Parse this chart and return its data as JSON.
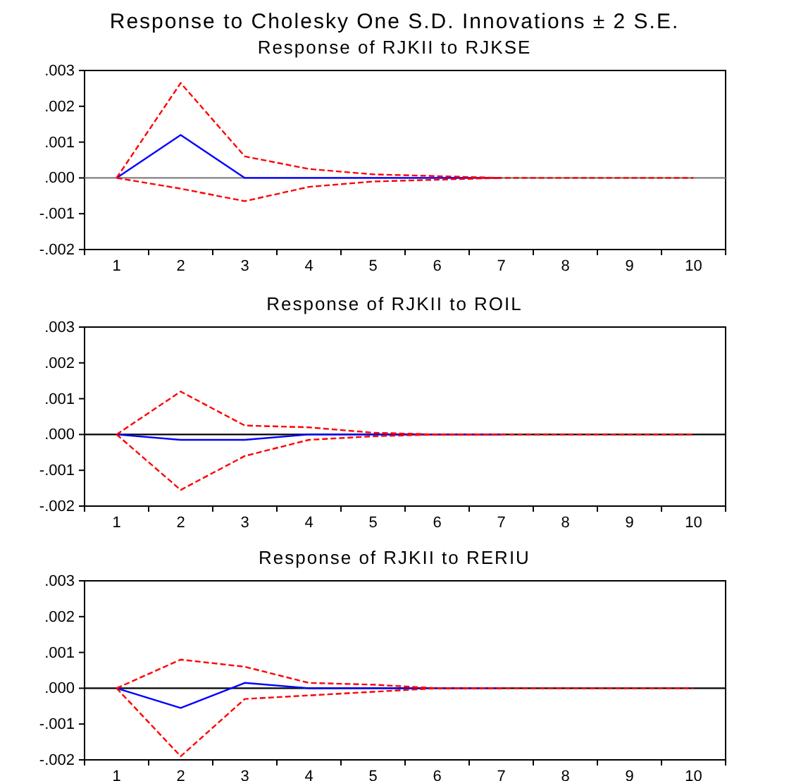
{
  "chart_data": [
    {
      "type": "line",
      "title": "Response to Cholesky One S.D. Innovations ± 2 S.E.",
      "subtitle": "Response of RJKII to RJKSE",
      "categories": [
        "1",
        "2",
        "3",
        "4",
        "5",
        "6",
        "7",
        "8",
        "9",
        "10"
      ],
      "series": [
        {
          "color": "#0000ff",
          "line_style": "solid",
          "values": [
            0,
            0.0012,
            0,
            0,
            0,
            0,
            0,
            null,
            null,
            null
          ]
        },
        {
          "color": "#ff0000",
          "line_style": "dashed",
          "values": [
            0,
            -0.0003,
            -0.00065,
            -0.00025,
            -0.0001,
            -5e-05,
            0,
            null,
            null,
            null
          ]
        },
        {
          "color": "#ff0000",
          "line_style": "dashed",
          "values": [
            0,
            0.00265,
            0.0006,
            0.00025,
            0.0001,
            5e-05,
            0,
            0,
            0,
            0
          ]
        }
      ],
      "ylim": [
        -0.002,
        0.003
      ],
      "yticks": [
        {
          "value": -0.002,
          "label": "-.002"
        },
        {
          "value": -0.001,
          "label": "-.001"
        },
        {
          "value": 0,
          "label": ".000"
        },
        {
          "value": 0.001,
          "label": ".001"
        },
        {
          "value": 0.002,
          "label": ".002"
        },
        {
          "value": 0.003,
          "label": ".003"
        }
      ],
      "ref_lines": [
        {
          "axis": "y",
          "value": 0,
          "color": "#808080"
        }
      ],
      "grid": false
    },
    {
      "type": "line",
      "title": "Response of RJKII to ROIL",
      "categories": [
        "1",
        "2",
        "3",
        "4",
        "5",
        "6",
        "7",
        "8",
        "9",
        "10"
      ],
      "series": [
        {
          "color": "#0000ff",
          "line_style": "solid",
          "values": [
            0,
            -0.00015,
            -0.00015,
            0,
            0,
            0,
            0,
            null,
            null,
            null
          ]
        },
        {
          "color": "#ff0000",
          "line_style": "dashed",
          "values": [
            0,
            -0.00155,
            -0.0006,
            -0.00015,
            -5e-05,
            0,
            0,
            null,
            null,
            null
          ]
        },
        {
          "color": "#ff0000",
          "line_style": "dashed",
          "values": [
            0,
            0.0012,
            0.00025,
            0.0002,
            5e-05,
            0,
            0,
            0,
            0,
            0
          ]
        }
      ],
      "ylim": [
        -0.002,
        0.003
      ],
      "yticks": [
        {
          "value": -0.002,
          "label": "-.002"
        },
        {
          "value": -0.001,
          "label": "-.001"
        },
        {
          "value": 0,
          "label": ".000"
        },
        {
          "value": 0.001,
          "label": ".001"
        },
        {
          "value": 0.002,
          "label": ".002"
        },
        {
          "value": 0.003,
          "label": ".003"
        }
      ],
      "ref_lines": [
        {
          "axis": "y",
          "value": 0,
          "color": "#000000"
        }
      ],
      "grid": false
    },
    {
      "type": "line",
      "title": "Response of RJKII to RERIU",
      "categories": [
        "1",
        "2",
        "3",
        "4",
        "5",
        "6",
        "7",
        "8",
        "9",
        "10"
      ],
      "series": [
        {
          "color": "#0000ff",
          "line_style": "solid",
          "values": [
            0,
            -0.00055,
            0.00015,
            0,
            0,
            0,
            0,
            null,
            null,
            null
          ]
        },
        {
          "color": "#ff0000",
          "line_style": "dashed",
          "values": [
            0,
            -0.0019,
            -0.0003,
            -0.0002,
            -0.0001,
            0,
            0,
            null,
            null,
            null
          ]
        },
        {
          "color": "#ff0000",
          "line_style": "dashed",
          "values": [
            0,
            0.0008,
            0.0006,
            0.00015,
            0.0001,
            0,
            0,
            0,
            0,
            0
          ]
        }
      ],
      "ylim": [
        -0.002,
        0.003
      ],
      "yticks": [
        {
          "value": -0.002,
          "label": "-.002"
        },
        {
          "value": -0.001,
          "label": "-.001"
        },
        {
          "value": 0,
          "label": ".000"
        },
        {
          "value": 0.001,
          "label": ".001"
        },
        {
          "value": 0.002,
          "label": ".002"
        },
        {
          "value": 0.003,
          "label": ".003"
        }
      ],
      "ref_lines": [
        {
          "axis": "y",
          "value": 0,
          "color": "#000000"
        }
      ],
      "grid": false
    }
  ]
}
